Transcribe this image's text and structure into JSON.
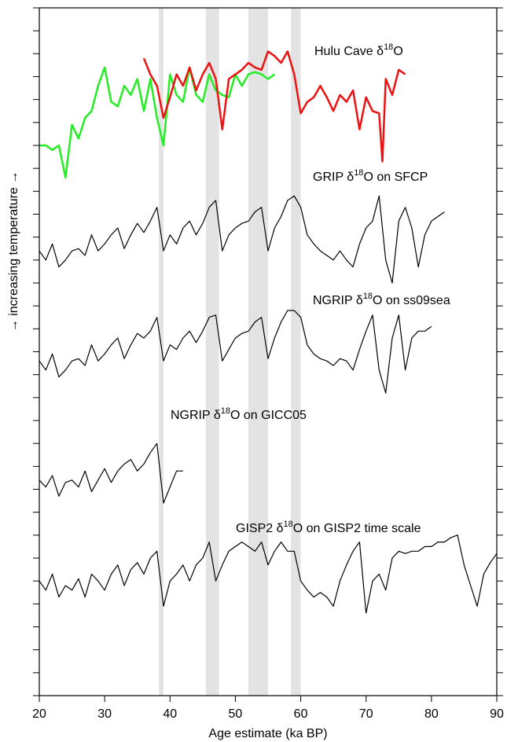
{
  "chart_data": {
    "type": "line",
    "xlabel": "Age estimate (ka BP)",
    "ylabel": "→ increasing temperature →",
    "xlim": [
      20,
      90
    ],
    "xticks": [
      20,
      30,
      40,
      50,
      60,
      70,
      80,
      90
    ],
    "ylim": [
      0,
      30
    ],
    "shaded_intervals": [
      [
        38.3,
        39
      ],
      [
        45.5,
        47.5
      ],
      [
        52,
        55
      ],
      [
        58.5,
        60
      ]
    ],
    "shade_color": "#e3e3e3",
    "annotations": [
      [
        "Hulu Cave δ",
        "18",
        "O"
      ],
      [
        "GRIP δ",
        "18",
        "O on SFCP"
      ],
      [
        "NGRIP δ",
        "18",
        "O on ss09sea"
      ],
      [
        "NGRIP δ",
        "18",
        "O on GICC05"
      ],
      [
        "GISP2 δ",
        "18",
        "O on GISP2 time scale"
      ]
    ],
    "series": [
      {
        "color": "#22ee22",
        "x": [
          20,
          21,
          22,
          23,
          24,
          25,
          26,
          27,
          28,
          29,
          30,
          31,
          32,
          33,
          34,
          35,
          36,
          37,
          38,
          39,
          40,
          41,
          42,
          43,
          44,
          45,
          46,
          47,
          48,
          49,
          50,
          51,
          52,
          53,
          54,
          55,
          56
        ],
        "values": [
          24.0,
          24.0,
          23.8,
          24.0,
          22.6,
          24.9,
          24.3,
          25.2,
          25.5,
          26.6,
          27.4,
          25.9,
          25.7,
          26.6,
          26.2,
          26.9,
          25.5,
          26.9,
          25.2,
          24.0,
          27.1,
          26.2,
          25.9,
          27.4,
          26.2,
          25.9,
          27.1,
          26.4,
          26.2,
          26.1,
          27.1,
          26.6,
          27.1,
          27.2,
          27.1,
          26.9,
          27.1
        ]
      },
      {
        "color": "#ee1111",
        "x": [
          36,
          37,
          38,
          39,
          40,
          41,
          42,
          43,
          44,
          45,
          46,
          47,
          48,
          49,
          50,
          51,
          52,
          53,
          54,
          55,
          56,
          57,
          58,
          59,
          60,
          61,
          62,
          63,
          64,
          65,
          66,
          67,
          68,
          69,
          70,
          71,
          72,
          72.5,
          73,
          74,
          75,
          76
        ],
        "values": [
          27.8,
          27.1,
          26.6,
          25.2,
          26.1,
          27.1,
          26.6,
          27.4,
          26.4,
          27.1,
          27.6,
          26.9,
          24.7,
          26.9,
          27.1,
          27.3,
          27.6,
          27.4,
          27.3,
          28.1,
          27.9,
          27.6,
          28.1,
          27.1,
          25.4,
          25.9,
          26.1,
          26.6,
          26.1,
          25.5,
          26.2,
          25.9,
          26.4,
          24.7,
          26.1,
          25.5,
          25.4,
          23.3,
          26.9,
          26.2,
          27.3,
          27.1
        ]
      },
      {
        "color": "#000000",
        "x": [
          20,
          21,
          22,
          23,
          24,
          25,
          26,
          27,
          28,
          29,
          30,
          31,
          32,
          33,
          34,
          35,
          36,
          37,
          38,
          39,
          40,
          41,
          42,
          43,
          44,
          45,
          46,
          47,
          48,
          49,
          50,
          51,
          52,
          53,
          54,
          55,
          56,
          57,
          58,
          59,
          60,
          61,
          62,
          63,
          64,
          65,
          66,
          67,
          68,
          69,
          70,
          71,
          72,
          73,
          74,
          75,
          76,
          77,
          78,
          79,
          80,
          81,
          82
        ],
        "values": [
          19.4,
          19.0,
          19.7,
          18.7,
          19.0,
          19.4,
          19.5,
          19.2,
          20.1,
          19.4,
          19.7,
          20.1,
          20.4,
          19.5,
          20.1,
          20.6,
          20.2,
          20.7,
          21.3,
          19.4,
          20.1,
          19.7,
          20.4,
          20.7,
          20.1,
          20.6,
          21.3,
          21.6,
          19.4,
          20.1,
          20.4,
          20.6,
          20.7,
          21.1,
          21.3,
          19.4,
          20.4,
          20.9,
          21.6,
          21.8,
          21.3,
          20.1,
          19.7,
          19.4,
          19.2,
          19.0,
          19.4,
          19.0,
          18.7,
          19.7,
          20.4,
          20.7,
          21.8,
          19.0,
          18.0,
          20.7,
          21.3,
          20.4,
          18.7,
          20.1,
          20.7,
          20.9,
          21.1
        ]
      },
      {
        "color": "#000000",
        "x": [
          20,
          21,
          22,
          23,
          24,
          25,
          26,
          27,
          28,
          29,
          30,
          31,
          32,
          33,
          34,
          35,
          36,
          37,
          38,
          39,
          40,
          41,
          42,
          43,
          44,
          45,
          46,
          47,
          48,
          49,
          50,
          51,
          52,
          53,
          54,
          55,
          56,
          57,
          58,
          59,
          60,
          61,
          62,
          63,
          64,
          65,
          66,
          67,
          68,
          69,
          70,
          71,
          72,
          73,
          74,
          75,
          76,
          77,
          78,
          79,
          80
        ],
        "values": [
          14.6,
          14.2,
          14.9,
          13.9,
          14.2,
          14.6,
          14.7,
          14.4,
          15.3,
          14.6,
          14.9,
          15.3,
          15.6,
          14.7,
          15.3,
          15.8,
          15.6,
          15.9,
          16.5,
          14.6,
          15.3,
          15.1,
          15.6,
          15.9,
          15.4,
          15.9,
          16.5,
          16.6,
          14.6,
          15.1,
          15.6,
          15.8,
          15.9,
          16.3,
          16.5,
          14.7,
          15.6,
          16.3,
          16.8,
          16.8,
          16.5,
          15.3,
          14.9,
          14.7,
          14.6,
          14.4,
          14.7,
          14.6,
          14.2,
          15.1,
          15.9,
          16.6,
          14.2,
          13.2,
          15.6,
          16.6,
          14.2,
          15.6,
          15.9,
          15.9,
          16.1
        ]
      },
      {
        "color": "#000000",
        "x": [
          20,
          21,
          22,
          23,
          24,
          25,
          26,
          27,
          28,
          29,
          30,
          31,
          32,
          33,
          34,
          35,
          36,
          37,
          38,
          39,
          40,
          41,
          42
        ],
        "values": [
          9.4,
          9.1,
          9.6,
          8.7,
          9.3,
          9.4,
          9.1,
          9.8,
          8.9,
          9.4,
          9.9,
          9.3,
          9.8,
          10.1,
          10.3,
          9.8,
          10.1,
          10.6,
          11.0,
          8.4,
          9.1,
          9.8,
          9.8
        ]
      },
      {
        "color": "#000000",
        "x": [
          20,
          21,
          22,
          23,
          24,
          25,
          26,
          27,
          28,
          29,
          30,
          31,
          32,
          33,
          34,
          35,
          36,
          37,
          38,
          39,
          40,
          41,
          42,
          43,
          44,
          45,
          46,
          47,
          48,
          49,
          50,
          51,
          52,
          53,
          54,
          55,
          56,
          57,
          58,
          59,
          60,
          61,
          62,
          63,
          64,
          65,
          66,
          67,
          68,
          69,
          70,
          71,
          72,
          73,
          74,
          75,
          76,
          77,
          78,
          79,
          80,
          81,
          82,
          83,
          84,
          85,
          86,
          87,
          88,
          89,
          90
        ],
        "values": [
          5.0,
          4.6,
          5.3,
          4.3,
          4.8,
          4.6,
          5.1,
          4.3,
          5.3,
          5.0,
          4.6,
          5.3,
          5.7,
          4.8,
          5.5,
          5.8,
          5.3,
          6.0,
          6.3,
          3.9,
          5.0,
          5.3,
          5.7,
          5.0,
          5.7,
          6.0,
          6.7,
          5.0,
          5.7,
          6.3,
          6.5,
          6.7,
          6.5,
          6.3,
          6.7,
          5.7,
          6.3,
          6.7,
          6.3,
          6.3,
          5.0,
          4.6,
          4.3,
          4.5,
          4.3,
          3.9,
          5.0,
          5.7,
          6.3,
          6.7,
          3.6,
          5.0,
          5.3,
          4.6,
          6.0,
          6.3,
          6.2,
          6.3,
          6.3,
          6.5,
          6.5,
          6.7,
          6.7,
          6.9,
          7.0,
          5.7,
          4.8,
          3.9,
          5.3,
          5.8,
          6.2
        ]
      }
    ]
  }
}
